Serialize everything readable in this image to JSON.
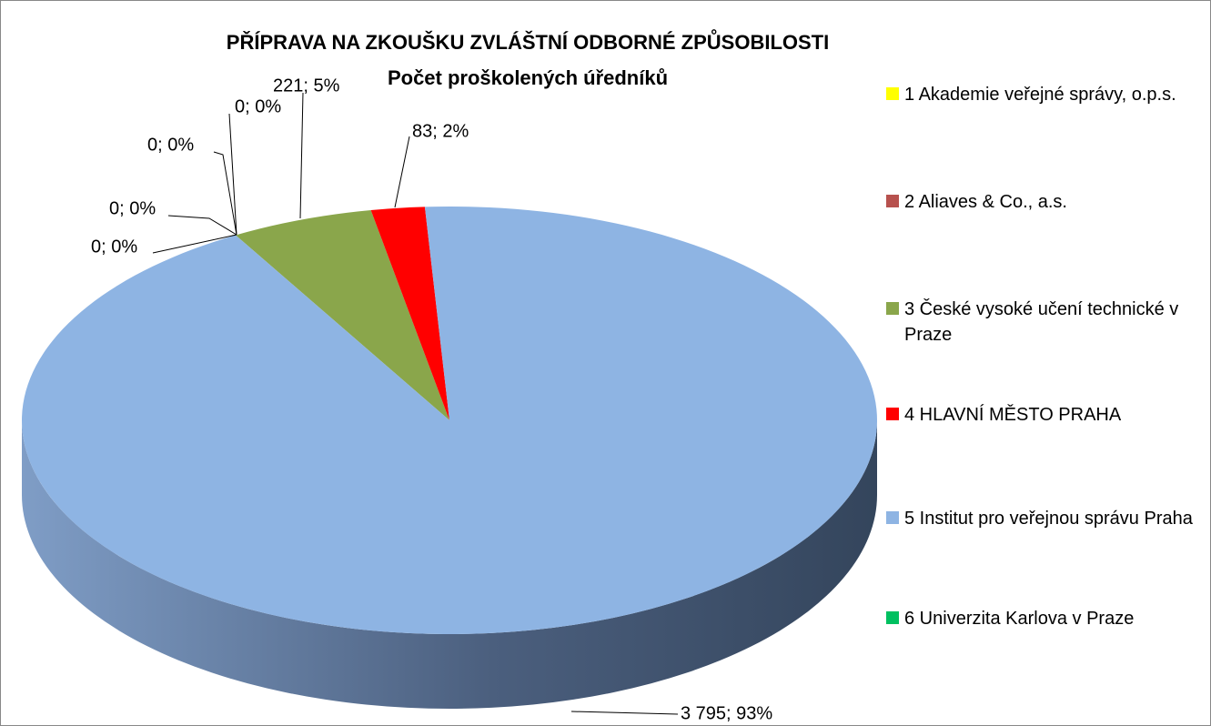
{
  "chart_data": {
    "type": "pie3d",
    "title": "PŘÍPRAVA NA ZKOUŠKU ZVLÁŠTNÍ ODBORNÉ ZPŮSOBILOSTI",
    "subtitle": "Počet proškolených úředníků",
    "categories": [
      "1 Akademie veřejné správy, o.p.s.",
      "2 Aliaves & Co., a.s.",
      "3 České vysoké učení technické v Praze",
      "4 HLAVNÍ MĚSTO PRAHA",
      "5 Institut pro veřejnou správu Praha",
      "6 Univerzita Karlova v Praze",
      null
    ],
    "values": [
      0,
      0,
      221,
      83,
      3795,
      0,
      0
    ],
    "value_labels": [
      "0; 0%",
      "0; 0%",
      "221; 5%",
      "83; 2%",
      "3 795; 93%",
      "0; 0%",
      "0; 0%"
    ],
    "colors": [
      "#ffff00",
      "#b7514e",
      "#8aa64b",
      "#ff0000",
      "#8eb4e3",
      "#00c060",
      "#7f7f7f"
    ],
    "legend": "right"
  }
}
